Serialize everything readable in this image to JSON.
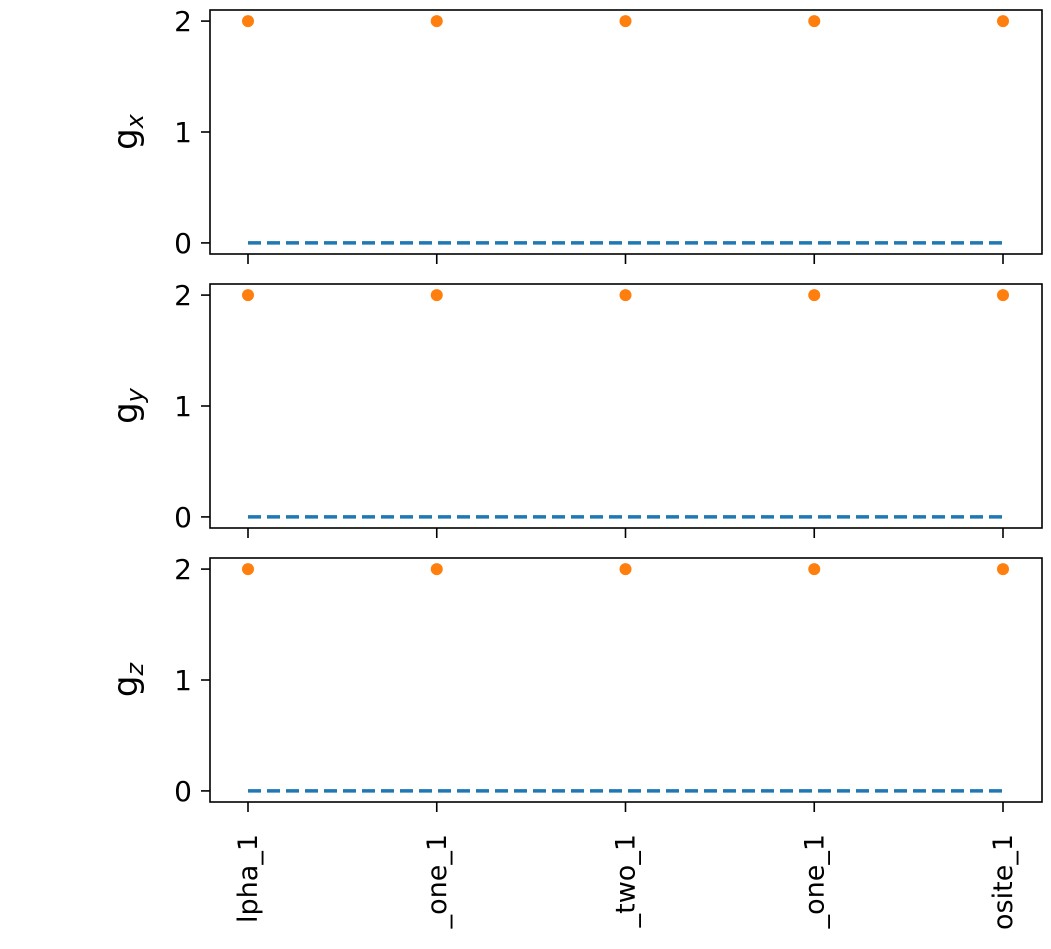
{
  "chart_data": [
    {
      "type": "scatter",
      "panel": "gx",
      "ylabel": "g",
      "ylabel_subscript": "x",
      "categories": [
        "lpha_1",
        "_one_1",
        "_two_1",
        "_one_1",
        "osite_1"
      ],
      "ylim": [
        -0.1,
        2.1
      ],
      "yticks": [
        0,
        1,
        2
      ],
      "grid": false,
      "series": [
        {
          "style": "dashed-line",
          "color": "#1f77b4",
          "values": [
            0,
            0,
            0,
            0,
            0
          ]
        },
        {
          "style": "markers",
          "color": "#ff7f0e",
          "values": [
            2,
            2,
            2,
            2,
            2
          ]
        }
      ]
    },
    {
      "type": "scatter",
      "panel": "gy",
      "ylabel": "g",
      "ylabel_subscript": "y",
      "categories": [
        "lpha_1",
        "_one_1",
        "_two_1",
        "_one_1",
        "osite_1"
      ],
      "ylim": [
        -0.1,
        2.1
      ],
      "yticks": [
        0,
        1,
        2
      ],
      "grid": false,
      "series": [
        {
          "style": "dashed-line",
          "color": "#1f77b4",
          "values": [
            0,
            0,
            0,
            0,
            0
          ]
        },
        {
          "style": "markers",
          "color": "#ff7f0e",
          "values": [
            2,
            2,
            2,
            2,
            2
          ]
        }
      ]
    },
    {
      "type": "scatter",
      "panel": "gz",
      "ylabel": "g",
      "ylabel_subscript": "z",
      "categories": [
        "lpha_1",
        "_one_1",
        "_two_1",
        "_one_1",
        "osite_1"
      ],
      "ylim": [
        -0.1,
        2.1
      ],
      "yticks": [
        0,
        1,
        2
      ],
      "grid": false,
      "series": [
        {
          "style": "dashed-line",
          "color": "#1f77b4",
          "values": [
            0,
            0,
            0,
            0,
            0
          ]
        },
        {
          "style": "markers",
          "color": "#ff7f0e",
          "values": [
            2,
            2,
            2,
            2,
            2
          ]
        }
      ]
    }
  ]
}
